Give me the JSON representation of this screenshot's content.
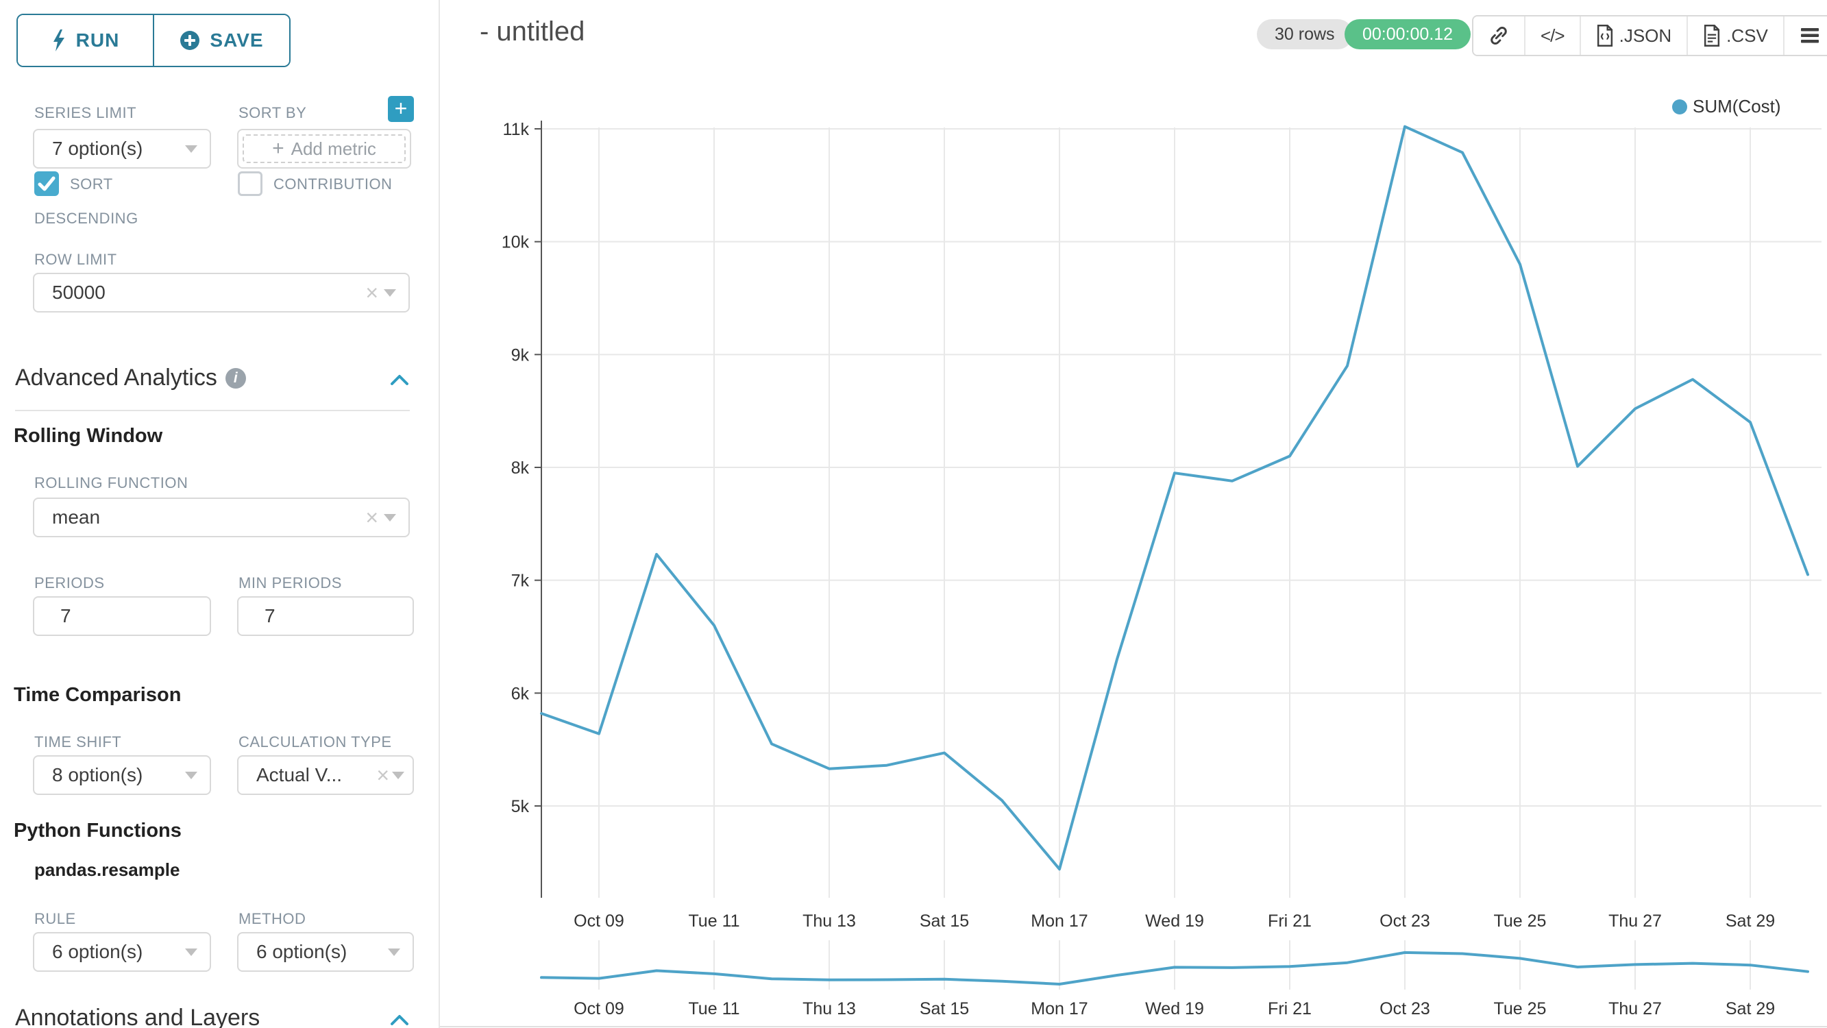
{
  "sidebar": {
    "run_label": "RUN",
    "save_label": "SAVE",
    "series_limit": {
      "label": "SERIES LIMIT",
      "value": "7 option(s)"
    },
    "sort_by": {
      "label": "SORT BY",
      "placeholder": "Add metric",
      "plus": "+"
    },
    "sort_descending": {
      "line1": "SORT",
      "line2": "DESCENDING",
      "checked": true
    },
    "contribution": {
      "label": "CONTRIBUTION",
      "checked": false
    },
    "row_limit": {
      "label": "ROW LIMIT",
      "value": "50000"
    },
    "advanced_analytics_title": "Advanced Analytics",
    "rolling_window": {
      "title": "Rolling Window",
      "rolling_function": {
        "label": "ROLLING FUNCTION",
        "value": "mean"
      },
      "periods": {
        "label": "PERIODS",
        "value": "7"
      },
      "min_periods": {
        "label": "MIN PERIODS",
        "value": "7"
      }
    },
    "time_comparison": {
      "title": "Time Comparison",
      "time_shift": {
        "label": "TIME SHIFT",
        "value": "8 option(s)"
      },
      "calculation_type": {
        "label": "CALCULATION TYPE",
        "value": "Actual V..."
      }
    },
    "python_functions": {
      "title": "Python Functions",
      "subtitle": "pandas.resample",
      "rule": {
        "label": "RULE",
        "value": "6 option(s)"
      },
      "method": {
        "label": "METHOD",
        "value": "6 option(s)"
      }
    },
    "annotations_title": "Annotations and Layers"
  },
  "header": {
    "title": "- untitled",
    "row_count": "30 rows",
    "timer": "00:00:00.12",
    "code_label": "</>",
    "json_label": ".JSON",
    "csv_label": ".CSV"
  },
  "colors": {
    "primary": "#2a7a96",
    "accent": "#2f9dc1",
    "checkbox": "#48abce",
    "line": "#4ea3c8",
    "timer_green": "#5ac189",
    "grid": "#e8e8e8",
    "axis": "#555555"
  },
  "chart_data": {
    "type": "line",
    "title": "- untitled",
    "legend_position": "top-right",
    "grid": true,
    "legend": [
      {
        "name": "SUM(Cost)",
        "color": "#4ea3c8"
      }
    ],
    "x": [
      "Oct 08",
      "Oct 09",
      "Oct 10",
      "Oct 11",
      "Oct 12",
      "Oct 13",
      "Oct 14",
      "Oct 15",
      "Oct 16",
      "Oct 17",
      "Oct 18",
      "Oct 19",
      "Oct 20",
      "Oct 21",
      "Oct 22",
      "Oct 23",
      "Oct 24",
      "Oct 25",
      "Oct 26",
      "Oct 27",
      "Oct 28",
      "Oct 29",
      "Oct 30"
    ],
    "series": [
      {
        "name": "SUM(Cost)",
        "values": [
          5820,
          5640,
          7230,
          6600,
          5550,
          5330,
          5360,
          5470,
          5050,
          4440,
          6300,
          7950,
          7880,
          8100,
          8900,
          11020,
          10790,
          9800,
          8010,
          8520,
          8780,
          8400,
          7050
        ]
      }
    ],
    "x_tick_labels": [
      "Oct 09",
      "Tue 11",
      "Thu 13",
      "Sat 15",
      "Mon 17",
      "Wed 19",
      "Fri 21",
      "Oct 23",
      "Tue 25",
      "Thu 27",
      "Sat 29"
    ],
    "y_ticks": [
      11000,
      10000,
      9000,
      8000,
      7000,
      6000,
      5000
    ],
    "y_tick_labels": [
      "11k",
      "10k",
      "9k",
      "8k",
      "7k",
      "6k",
      "5k"
    ],
    "ylim": [
      4190,
      11100
    ],
    "xlabel": "",
    "ylabel": "",
    "mini_chart": "zoom preview of same series below main chart"
  }
}
